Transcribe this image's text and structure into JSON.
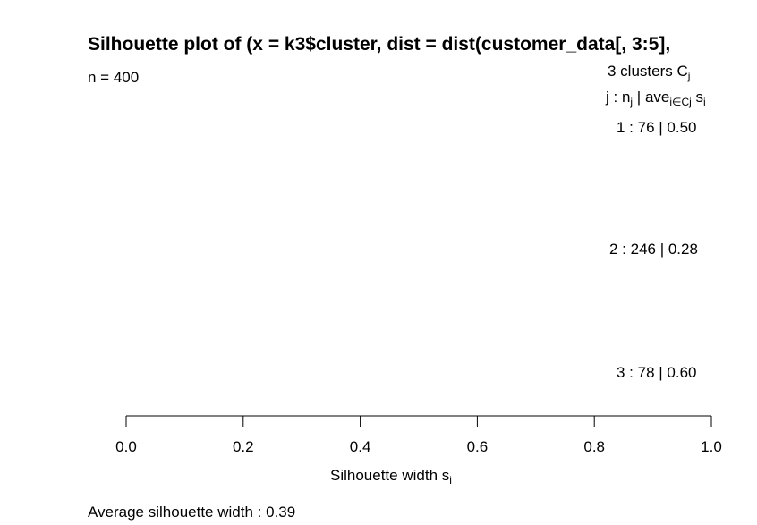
{
  "chart_data": {
    "type": "bar",
    "title": "Silhouette plot of (x = k3$cluster, dist = dist(customer_data[, 3:5],",
    "n_label": "n = 400",
    "header": {
      "clusters_text": "3  clusters  C",
      "clusters_sub": "j",
      "cols_j": "j :  n",
      "cols_j_sub": "j",
      "cols_ave": " | ave",
      "cols_ave_sub": "i∈Cj",
      "cols_s": "  s",
      "cols_s_sub": "i"
    },
    "clusters": [
      {
        "label": "1 :   76  |  0.50",
        "size": 76,
        "avg_width": 0.5
      },
      {
        "label": "2 :   246  |  0.28",
        "size": 246,
        "avg_width": 0.28
      },
      {
        "label": "3 :   78  |  0.60",
        "size": 78,
        "avg_width": 0.6
      }
    ],
    "xlim": [
      0.0,
      1.0
    ],
    "x_ticks": [
      "0.0",
      "0.2",
      "0.4",
      "0.6",
      "0.8",
      "1.0"
    ],
    "xlabel": "Silhouette width s",
    "xlabel_sub": "i",
    "average_text": "Average silhouette width :  0.39"
  }
}
